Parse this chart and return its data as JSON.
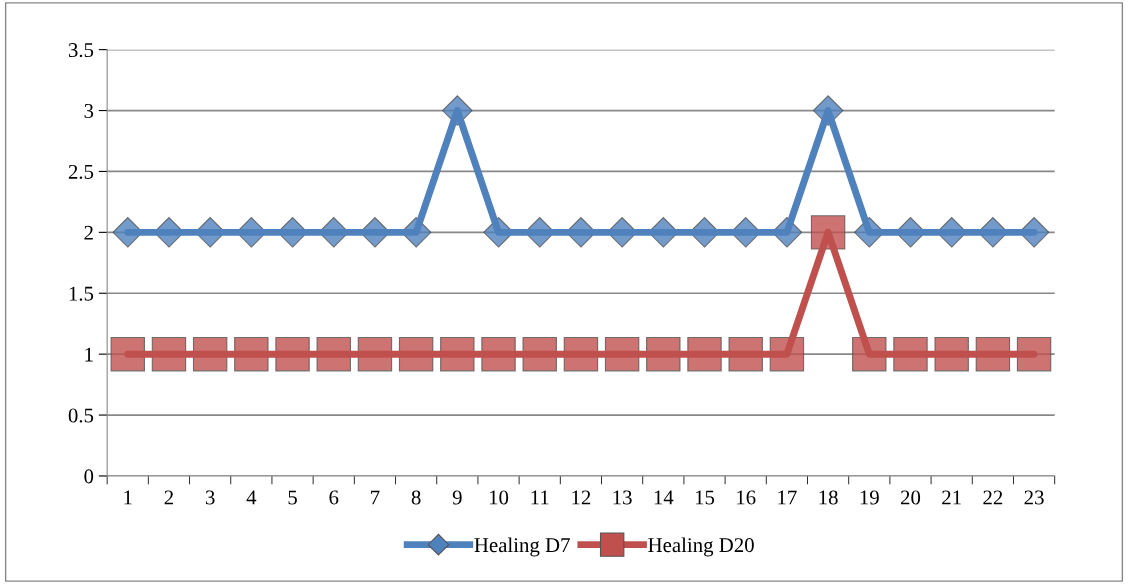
{
  "chart_data": {
    "type": "line",
    "categories": [
      "1",
      "2",
      "3",
      "4",
      "5",
      "6",
      "7",
      "8",
      "9",
      "10",
      "11",
      "12",
      "13",
      "14",
      "15",
      "16",
      "17",
      "18",
      "19",
      "20",
      "21",
      "22",
      "23"
    ],
    "series": [
      {
        "name": "Healing D7",
        "color": "#4f81bd",
        "marker": "diamond",
        "values": [
          2,
          2,
          2,
          2,
          2,
          2,
          2,
          2,
          3,
          2,
          2,
          2,
          2,
          2,
          2,
          2,
          2,
          3,
          2,
          2,
          2,
          2,
          2
        ]
      },
      {
        "name": "Healing D20",
        "color": "#c0504d",
        "marker": "square",
        "values": [
          1,
          1,
          1,
          1,
          1,
          1,
          1,
          1,
          1,
          1,
          1,
          1,
          1,
          1,
          1,
          1,
          1,
          2,
          1,
          1,
          1,
          1,
          1
        ]
      }
    ],
    "ylim": [
      0,
      3.5
    ],
    "yticks": [
      0,
      0.5,
      1,
      1.5,
      2,
      2.5,
      3,
      3.5
    ],
    "grid": "y",
    "legend": "bottom",
    "line_style": "solid"
  }
}
